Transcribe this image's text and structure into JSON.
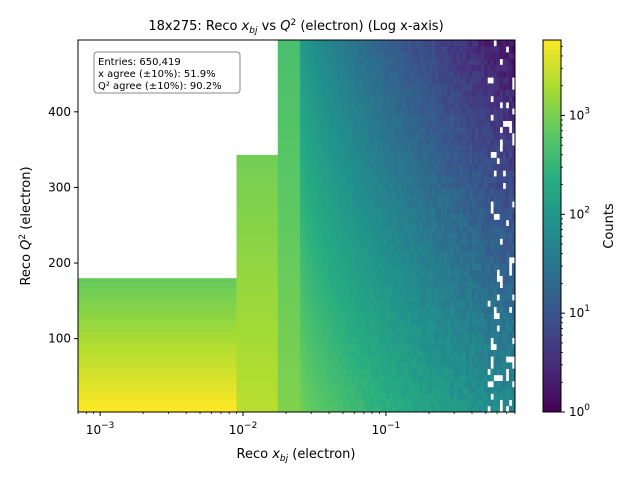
{
  "chart_data": {
    "type": "heatmap",
    "title": "18x275: Reco x_bj vs Q^2 (electron) (Log x-axis)",
    "title_parts": {
      "pre": "18x275: Reco ",
      "x": "x",
      "x_sub": "bj",
      "mid": " vs ",
      "q": "Q",
      "q_sup": "2",
      "post": " (electron) (Log x-axis)"
    },
    "xlabel": "Reco x_bj (electron)",
    "xlabel_parts": {
      "pre": "Reco ",
      "x": "x",
      "sub": "bj",
      "post": " (electron)"
    },
    "ylabel": "Reco Q^2 (electron)",
    "ylabel_parts": {
      "pre": "Reco ",
      "q": "Q",
      "sup": "2",
      "post": " (electron)"
    },
    "x_scale": "log",
    "xlim": [
      0.0007,
      0.8
    ],
    "ylim": [
      3,
      495
    ],
    "x_ticks": [
      {
        "value": 0.001,
        "base": "10",
        "exp": "−3"
      },
      {
        "value": 0.01,
        "base": "10",
        "exp": "−2"
      },
      {
        "value": 0.1,
        "base": "10",
        "exp": "−1"
      }
    ],
    "y_ticks": [
      {
        "value": 100,
        "label": "100"
      },
      {
        "value": 200,
        "label": "200"
      },
      {
        "value": 300,
        "label": "300"
      },
      {
        "value": 400,
        "label": "400"
      }
    ],
    "colorbar": {
      "label": "Counts",
      "scale": "log",
      "colormap": "viridis",
      "range": [
        1,
        5800
      ],
      "ticks": [
        {
          "value": 1,
          "base": "10",
          "exp": "0"
        },
        {
          "value": 10,
          "base": "10",
          "exp": "1"
        },
        {
          "value": 100,
          "base": "10",
          "exp": "2"
        },
        {
          "value": 1000,
          "base": "10",
          "exp": "3"
        }
      ]
    },
    "regions": [
      {
        "x_min": 0.0007,
        "x_max": 0.009,
        "q2_max": 180,
        "counts_low_q2": 5800,
        "counts_high_q2": 700
      },
      {
        "x_min": 0.009,
        "x_max": 0.0175,
        "q2_max": 343,
        "counts_low_q2": 2400,
        "counts_high_q2": 900
      },
      {
        "x_min": 0.0175,
        "x_max": 0.025,
        "q2_max": 495,
        "counts_low_q2": 1100,
        "counts_high_q2": 450
      },
      {
        "x_min": 0.025,
        "x_max": 0.8,
        "q2_max": 495,
        "counts_low_q2": 900,
        "counts_high_q2": 0.6
      }
    ],
    "stats_box": {
      "lines": [
        "Entries: 650,419",
        "x agree (±10%): 51.9%",
        "Q² agree (±10%): 90.2%"
      ],
      "position": "top-left"
    }
  }
}
